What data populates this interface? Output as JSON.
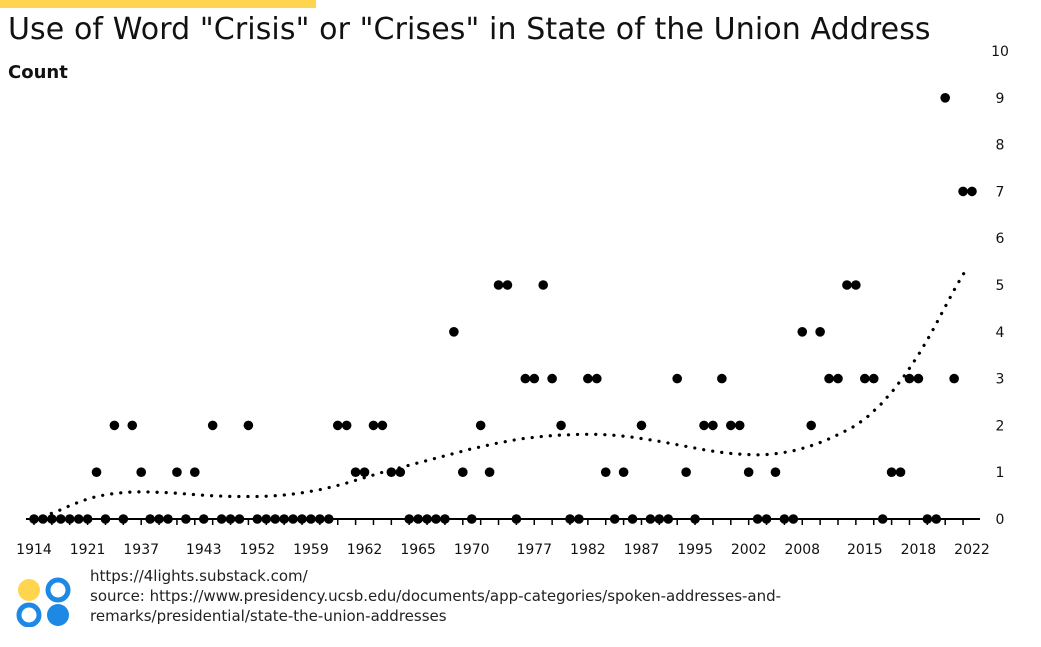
{
  "title": "Use of Word \"Crisis\" or \"Crises\" in State of the Union Address",
  "ylabel": "Count",
  "accent_color": "#FFD54F",
  "dot_color": "#000000",
  "logo_colors": {
    "yellow": "#FFD54F",
    "blue": "#1E88E5"
  },
  "footer": {
    "site": "https://4lights.substack.com/",
    "source": "source: https://www.presidency.ucsb.edu/documents/app-categories/spoken-addresses-and-remarks/presidential/state-the-union-addresses"
  },
  "chart_data": {
    "type": "scatter",
    "title": "Use of Word \"Crisis\" or \"Crises\" in State of the Union Address",
    "ylabel": "Count",
    "xlabel": "",
    "ylim": [
      0,
      10
    ],
    "y_ticks": [
      0,
      1,
      2,
      3,
      4,
      5,
      6,
      7,
      8,
      9,
      10
    ],
    "y_axis_side": "right",
    "x_tick_labels": [
      "1914",
      "1921",
      "1937",
      "1943",
      "1952",
      "1959",
      "1962",
      "1965",
      "1970",
      "1977",
      "1982",
      "1987",
      "1995",
      "2002",
      "2008",
      "2015",
      "2018",
      "2022"
    ],
    "grid": false,
    "trendline": "dotted smooth curve",
    "series": [
      {
        "values": [
          0,
          0,
          0,
          0,
          0,
          0,
          0,
          1,
          0,
          2,
          0,
          2,
          1,
          0,
          0,
          0,
          1,
          0,
          1,
          0,
          2,
          0,
          0,
          0,
          2,
          0,
          0,
          0,
          0,
          0,
          0,
          0,
          0,
          0,
          2,
          2,
          1,
          1,
          2,
          2,
          1,
          1,
          0,
          0,
          0,
          0,
          0,
          4,
          1,
          0,
          2,
          1,
          5,
          5,
          0,
          3,
          3,
          5,
          3,
          2,
          0,
          0,
          3,
          3,
          1,
          0,
          1,
          0,
          2,
          0,
          0,
          0,
          3,
          1,
          0,
          2,
          2,
          3,
          2,
          2,
          1,
          0,
          0,
          1,
          0,
          0,
          4,
          2,
          4,
          3,
          3,
          5,
          5,
          3,
          3,
          0,
          1,
          1,
          3,
          3,
          0,
          0,
          9,
          3,
          7,
          7
        ]
      }
    ],
    "trend_values": [
      0,
      0.08,
      0.18,
      0.3,
      0.4,
      0.48,
      0.53,
      0.56,
      0.58,
      0.58,
      0.57,
      0.56,
      0.54,
      0.52,
      0.5,
      0.49,
      0.48,
      0.48,
      0.48,
      0.49,
      0.51,
      0.54,
      0.58,
      0.63,
      0.69,
      0.76,
      0.84,
      0.92,
      1.0,
      1.07,
      1.14,
      1.21,
      1.28,
      1.35,
      1.42,
      1.49,
      1.55,
      1.61,
      1.66,
      1.71,
      1.74,
      1.77,
      1.79,
      1.8,
      1.81,
      1.81,
      1.8,
      1.78,
      1.75,
      1.71,
      1.67,
      1.62,
      1.57,
      1.52,
      1.47,
      1.43,
      1.4,
      1.38,
      1.37,
      1.38,
      1.41,
      1.46,
      1.53,
      1.62,
      1.73,
      1.86,
      2.0,
      2.2,
      2.45,
      2.75,
      3.1,
      3.5,
      3.95,
      4.45,
      4.95,
      5.4
    ]
  }
}
